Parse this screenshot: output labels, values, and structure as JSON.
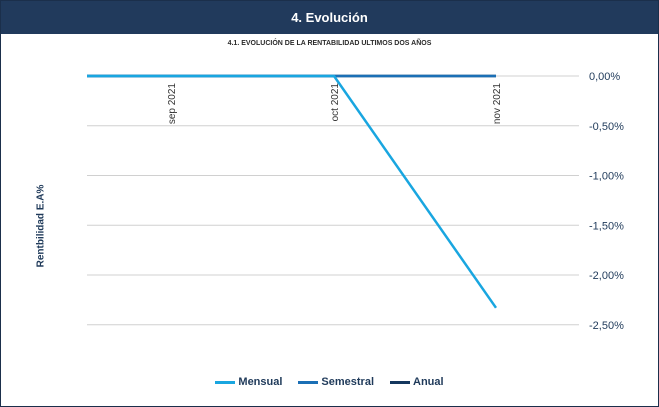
{
  "header": {
    "title": "4. Evolución"
  },
  "chart_data": {
    "type": "line",
    "title": "4.1. EVOLUCIÓN DE LA RENTABILIDAD ULTIMOS DOS AÑOS",
    "ylabel": "Rentbilidad  E.A%",
    "xlabel": "",
    "categories": [
      "sep 2021",
      "oct 2021",
      "nov 2021"
    ],
    "y_ticks": [
      0,
      -0.5,
      -1.0,
      -1.5,
      -2.0,
      -2.5
    ],
    "y_tick_labels": [
      "0,00%",
      "-0,50%",
      "-1,00%",
      "-1,50%",
      "-2,00%",
      "-2,50%"
    ],
    "ylim": [
      -3.0,
      0
    ],
    "y_axis_side": "right",
    "grid": true,
    "legend_position": "bottom",
    "series": [
      {
        "name": "Mensual",
        "color": "#19a6e0",
        "values": [
          0.0,
          0.0,
          -2.33
        ]
      },
      {
        "name": "Semestral",
        "color": "#1b6fb5",
        "values": [
          0.0,
          0.0,
          0.0
        ]
      },
      {
        "name": "Anual",
        "color": "#14375e",
        "values": [
          0.0,
          0.0,
          0.0
        ]
      }
    ]
  }
}
